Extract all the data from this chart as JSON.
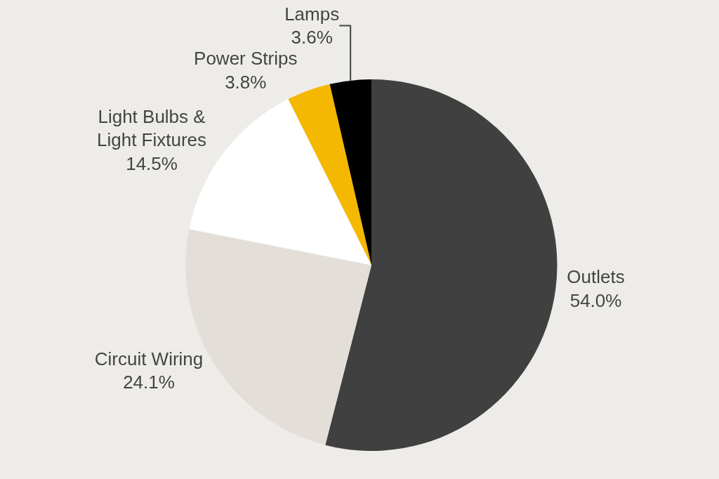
{
  "chart_data": {
    "type": "pie",
    "categories": [
      "Outlets",
      "Circuit Wiring",
      "Light Bulbs & Light Fixtures",
      "Power Strips",
      "Lamps"
    ],
    "values": [
      54.0,
      24.1,
      14.5,
      3.8,
      3.6
    ],
    "colors": [
      "#404040",
      "#e3dfd8",
      "#ffffff",
      "#f5b800",
      "#000000"
    ],
    "value_labels": [
      "54.0%",
      "24.1%",
      "14.5%",
      "3.8%",
      "3.6%"
    ],
    "legend": false
  }
}
